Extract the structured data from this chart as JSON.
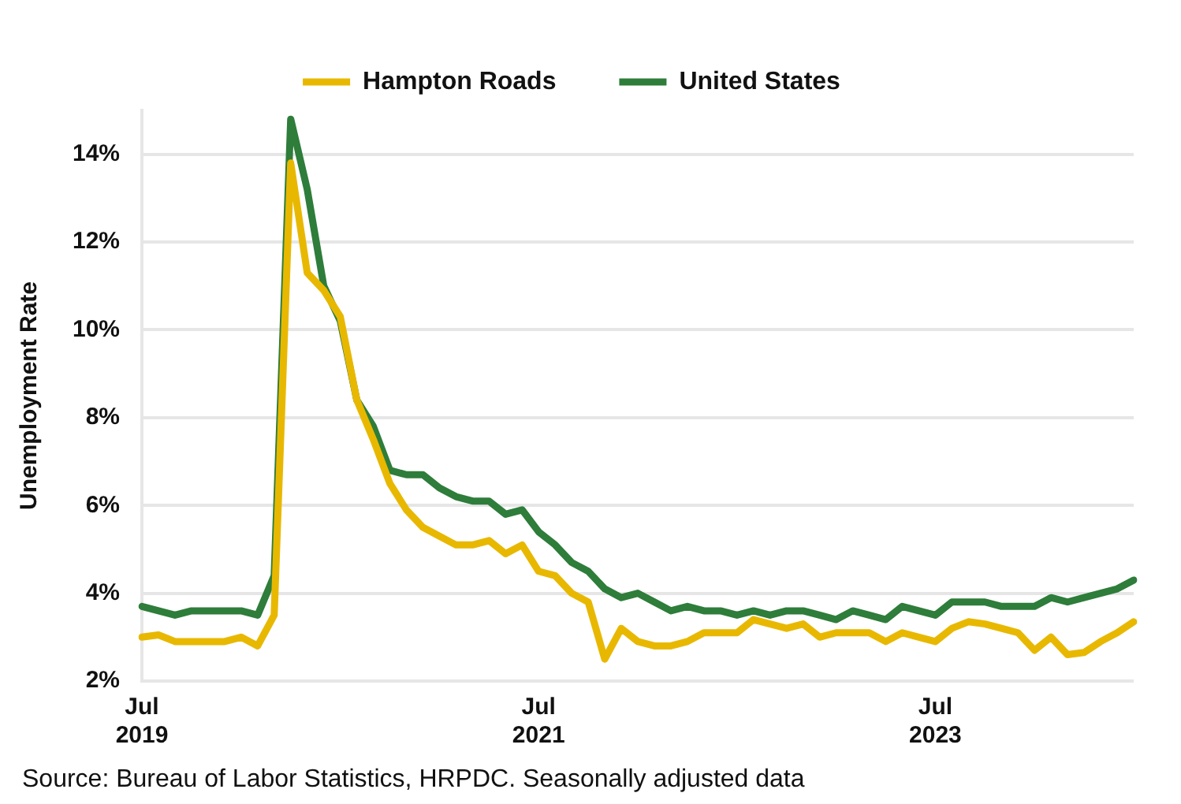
{
  "chart_data": {
    "type": "line",
    "ylabel": "Unemployment Rate",
    "categories": [
      "Jul 2019",
      null,
      null,
      null,
      null,
      null,
      null,
      null,
      null,
      null,
      null,
      null,
      null,
      null,
      null,
      null,
      null,
      null,
      null,
      null,
      null,
      null,
      null,
      null,
      "Jul 2021",
      null,
      null,
      null,
      null,
      null,
      null,
      null,
      null,
      null,
      null,
      null,
      null,
      null,
      null,
      null,
      null,
      null,
      null,
      null,
      null,
      null,
      null,
      null,
      "Jul 2023",
      null,
      null,
      null,
      null,
      null,
      null,
      null,
      null,
      null,
      null,
      null,
      null
    ],
    "series": [
      {
        "name": "Hampton Roads",
        "color": "#e8b800",
        "values": [
          3.0,
          3.05,
          2.9,
          2.9,
          2.9,
          2.9,
          3.0,
          2.8,
          3.5,
          13.8,
          11.3,
          10.9,
          10.3,
          8.4,
          7.5,
          6.5,
          5.9,
          5.5,
          5.3,
          5.1,
          5.1,
          5.2,
          4.9,
          5.1,
          4.5,
          4.4,
          4.0,
          3.8,
          2.5,
          3.2,
          2.9,
          2.8,
          2.8,
          2.9,
          3.1,
          3.1,
          3.1,
          3.4,
          3.3,
          3.2,
          3.3,
          3.0,
          3.1,
          3.1,
          3.1,
          2.9,
          3.1,
          3.0,
          2.9,
          3.2,
          3.35,
          3.3,
          3.2,
          3.1,
          2.7,
          3.0,
          2.6,
          2.65,
          2.9,
          3.1,
          3.35
        ]
      },
      {
        "name": "United States",
        "color": "#2e7d3a",
        "values": [
          3.7,
          3.6,
          3.5,
          3.6,
          3.6,
          3.6,
          3.6,
          3.5,
          4.4,
          14.8,
          13.2,
          11.0,
          10.2,
          8.4,
          7.8,
          6.8,
          6.7,
          6.7,
          6.4,
          6.2,
          6.1,
          6.1,
          5.8,
          5.9,
          5.4,
          5.1,
          4.7,
          4.5,
          4.1,
          3.9,
          4.0,
          3.8,
          3.6,
          3.7,
          3.6,
          3.6,
          3.5,
          3.6,
          3.5,
          3.6,
          3.6,
          3.5,
          3.4,
          3.6,
          3.5,
          3.4,
          3.7,
          3.6,
          3.5,
          3.8,
          3.8,
          3.8,
          3.7,
          3.7,
          3.7,
          3.9,
          3.8,
          3.9,
          4.0,
          4.1,
          4.3
        ]
      }
    ],
    "ylim": [
      2,
      15
    ],
    "yticks": [
      {
        "value": 2,
        "label": "2%"
      },
      {
        "value": 4,
        "label": "4%"
      },
      {
        "value": 6,
        "label": "6%"
      },
      {
        "value": 8,
        "label": "8%"
      },
      {
        "value": 10,
        "label": "10%"
      },
      {
        "value": 12,
        "label": "12%"
      },
      {
        "value": 14,
        "label": "14%"
      }
    ],
    "grid": "y",
    "legend": "top",
    "marker": "none",
    "line_style": "solid",
    "annotations": [
      "Source: Bureau of Labor Statistics, HRPDC. Seasonally adjusted data"
    ]
  }
}
